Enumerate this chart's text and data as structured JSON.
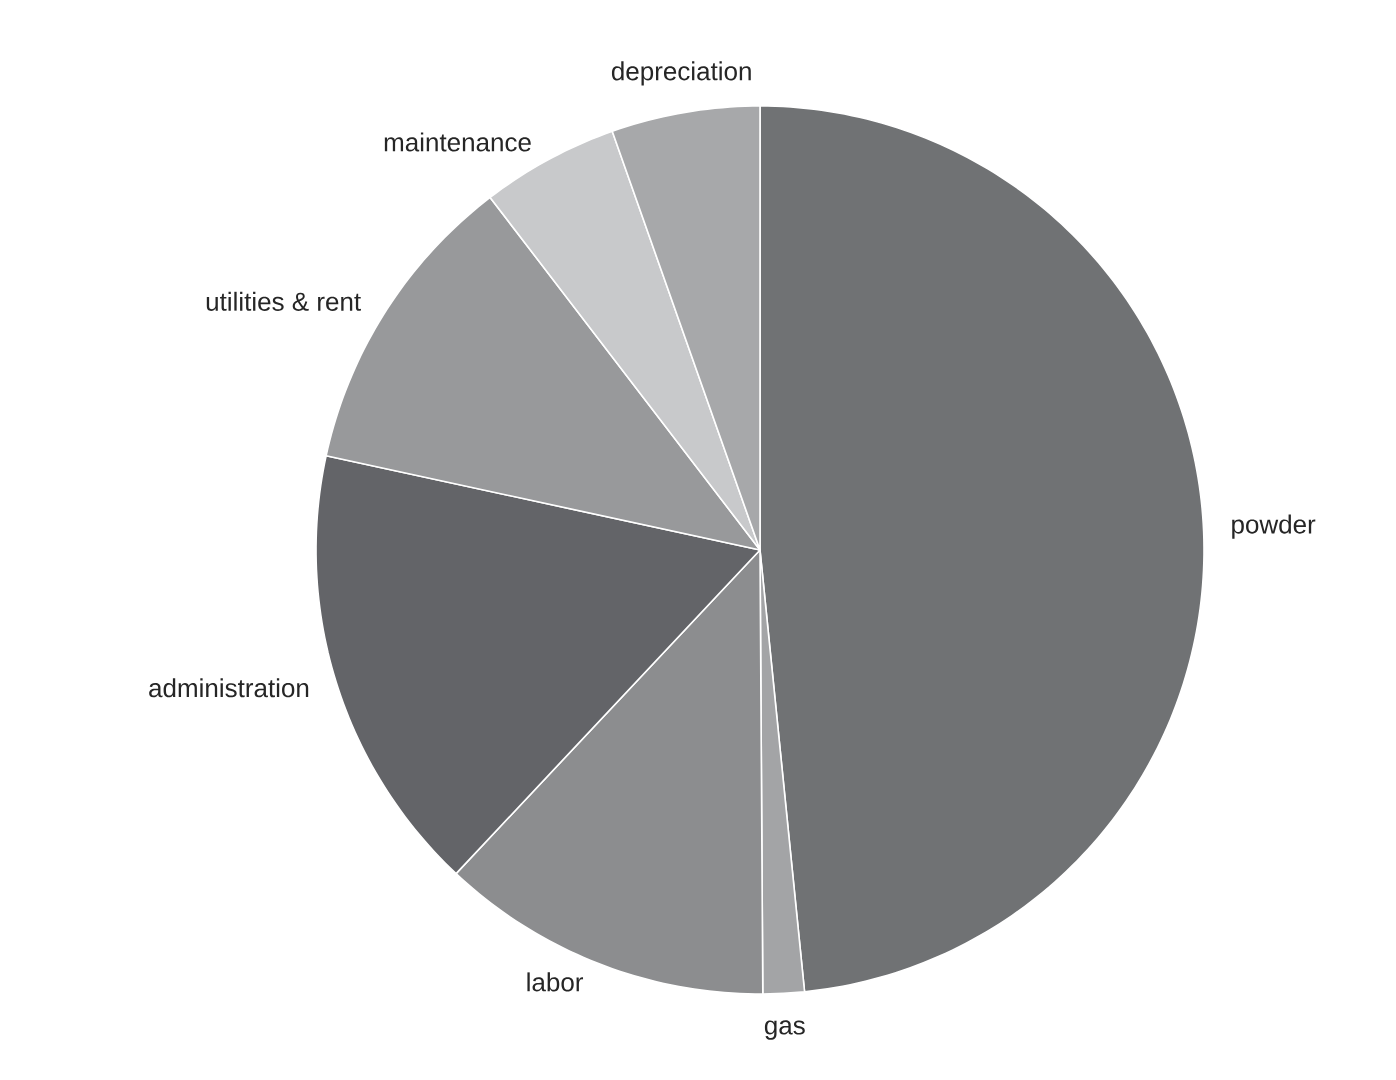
{
  "chart_data": {
    "type": "pie",
    "categories": [
      "powder",
      "gas",
      "labor",
      "administration",
      "utilities & rent",
      "maintenance",
      "depreciation"
    ],
    "values": [
      48.4,
      1.5,
      12.1,
      16.4,
      11.2,
      5.0,
      5.4
    ],
    "colors": [
      "#707274",
      "#a3a4a6",
      "#8c8d8f",
      "#636468",
      "#98999b",
      "#c8c9cb",
      "#a7a8aa"
    ]
  }
}
